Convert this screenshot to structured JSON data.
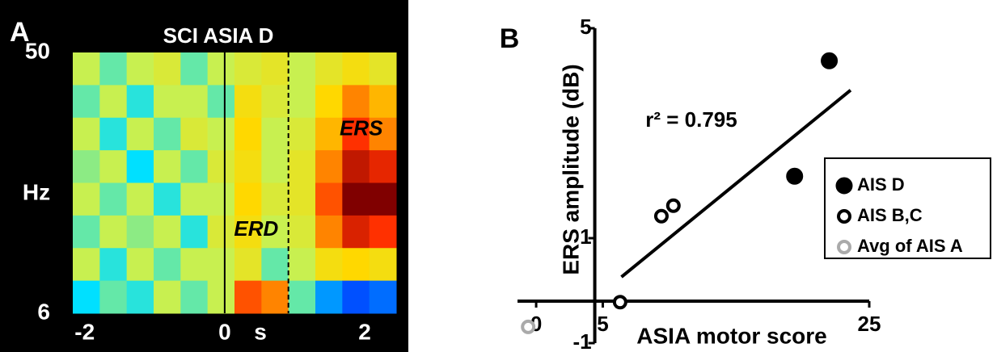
{
  "chart_data": [
    {
      "type": "heatmap",
      "panel": "A",
      "title": "SCI ASIA D",
      "xlabel": "s",
      "ylabel": "Hz",
      "xlim": [
        -2.17,
        2.45
      ],
      "xticks": [
        -2,
        0,
        2
      ],
      "ylim": [
        6,
        50
      ],
      "yticks": [
        6,
        50
      ],
      "zlim": [
        -3,
        3
      ],
      "colorscale": [
        "#00008f",
        "#0050ff",
        "#00e0ff",
        "#c8f050",
        "#ffd800",
        "#ff3000",
        "#800000"
      ],
      "vlines": [
        {
          "x": 0,
          "style": "solid"
        },
        {
          "x": 0.91,
          "style": "dashed"
        }
      ],
      "annotations": [
        {
          "text": "ERD",
          "x": 0.45,
          "y": 20
        },
        {
          "text": "ERS",
          "x": 1.95,
          "y": 37
        }
      ],
      "values": [
        [
          0,
          -0.5,
          0,
          0.3,
          -0.5,
          0,
          0.3,
          0.5,
          0,
          0.5,
          0.8,
          0.5
        ],
        [
          -0.5,
          0,
          -0.8,
          0,
          0,
          -0.5,
          0.8,
          0.3,
          0,
          1,
          1.5,
          1.2
        ],
        [
          0,
          -0.8,
          0,
          -0.5,
          0.3,
          0,
          1,
          0,
          0.3,
          1.2,
          2,
          1.5
        ],
        [
          -0.3,
          0,
          -1,
          0,
          -0.5,
          0.3,
          0.8,
          0,
          0.5,
          1.5,
          2.5,
          2.2
        ],
        [
          0,
          -0.5,
          0,
          -0.8,
          0,
          0,
          1,
          0.3,
          0.5,
          1.8,
          3,
          3
        ],
        [
          -0.5,
          0,
          -0.3,
          0,
          -0.8,
          0.3,
          0.8,
          0,
          0.3,
          1.5,
          2.3,
          2
        ],
        [
          0,
          -0.8,
          0,
          -0.5,
          0,
          0,
          0.5,
          -0.5,
          0,
          0.8,
          1,
          0.8
        ],
        [
          -1,
          -0.5,
          -0.8,
          0,
          -0.5,
          0,
          1.8,
          1.5,
          -0.5,
          -1.5,
          -2,
          -1.8
        ]
      ]
    },
    {
      "type": "scatter",
      "panel": "B",
      "xlabel": "ASIA motor score",
      "ylabel": "ERS amplitude (dB)",
      "xlim": [
        -1.4,
        25
      ],
      "xticks": [
        0,
        5,
        25
      ],
      "ylim": [
        -1,
        5
      ],
      "yticks": [
        -1,
        1,
        5
      ],
      "x_axis_at": -0.2,
      "y_axis_at": 4.4,
      "annotation": "r² = 0.795",
      "fit_line": {
        "x": [
          6.4,
          23.6
        ],
        "y": [
          0.26,
          3.82
        ]
      },
      "legend": "right",
      "series": [
        {
          "name": "AIS D",
          "color": "#000000",
          "filled": true,
          "x": [
            22.0,
            19.4
          ],
          "values": [
            4.38,
            2.18
          ]
        },
        {
          "name": "AIS B,C",
          "color": "#000000",
          "filled": false,
          "x": [
            9.4,
            10.3,
            6.3
          ],
          "values": [
            1.42,
            1.62,
            -0.22
          ]
        },
        {
          "name": "Avg of AIS A",
          "color": "#aaaaaa",
          "filled": false,
          "x": [
            -0.6
          ],
          "values": [
            -0.69
          ]
        }
      ]
    }
  ]
}
